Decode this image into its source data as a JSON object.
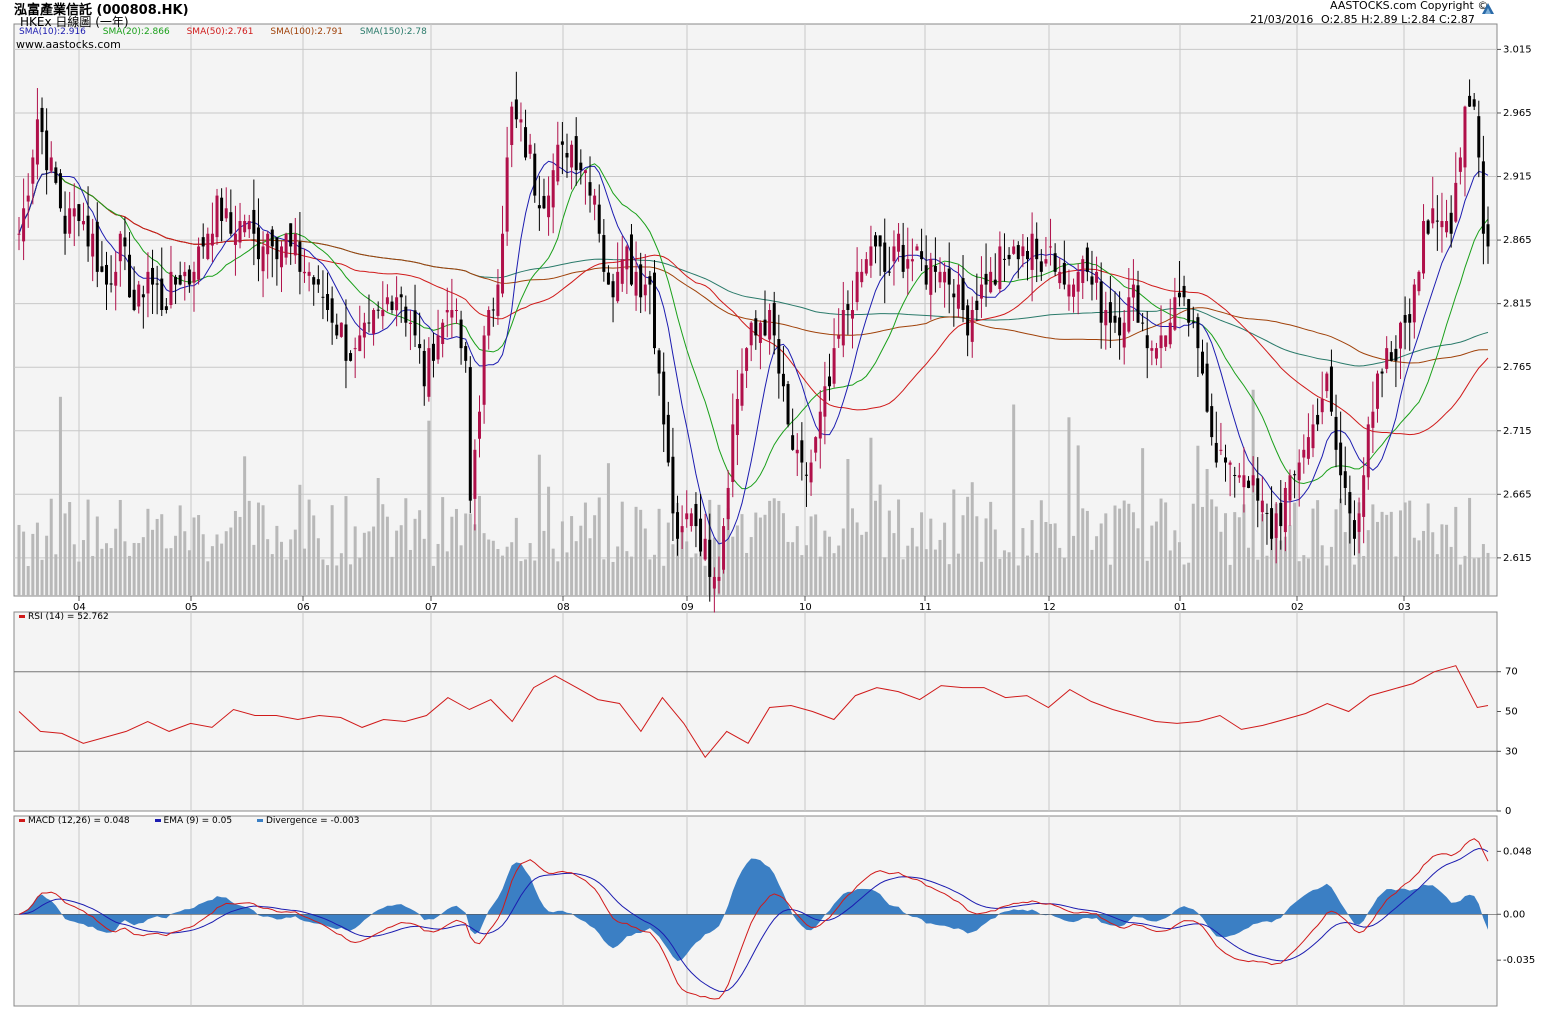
{
  "header": {
    "title": "泓富產業信託 (000808.HK)",
    "subtitle": "HKEx  日線圖 (一年)",
    "copyright": "AASTOCKS.com Copyright ©",
    "date": "21/03/2016",
    "ohlc": "O:2.85  H:2.89  L:2.84  C:2.87",
    "url": "www.aastocks.com",
    "logo_icon": "aastocks-logo-icon"
  },
  "sma_legend": [
    {
      "label": "SMA(10):2.916",
      "color": "#1c1cb0"
    },
    {
      "label": "SMA(20):2.866",
      "color": "#1aa01a"
    },
    {
      "label": "SMA(50):2.761",
      "color": "#d01a1a"
    },
    {
      "label": "SMA(100):2.791",
      "color": "#a0420a"
    },
    {
      "label": "SMA(150):2.78",
      "color": "#2a7a6a"
    }
  ],
  "rsi_legend": {
    "label": "RSI (14)  = 52.762",
    "color": "#d01a1a"
  },
  "macd_legend": [
    {
      "label": "MACD (12,26) = 0.048",
      "color": "#d01a1a"
    },
    {
      "label": "EMA (9) = 0.05",
      "color": "#1c1cb0"
    },
    {
      "label": "Divergence = -0.003",
      "color": "#3b7fc4"
    }
  ],
  "chart_data": [
    {
      "type": "candlestick",
      "x_tick_labels": [
        "04",
        "05",
        "06",
        "07",
        "08",
        "09",
        "10",
        "11",
        "12",
        "01",
        "02",
        "03"
      ],
      "y_tick_labels": [
        "3.015",
        "2.965",
        "2.915",
        "2.865",
        "2.815",
        "2.765",
        "2.715",
        "2.665",
        "2.615"
      ],
      "ylim": [
        2.585,
        3.035
      ],
      "last_bar": {
        "date": "21/03/2016",
        "open": 2.85,
        "high": 2.89,
        "low": 2.84,
        "close": 2.87
      },
      "close_path": [
        [
          0,
          2.87
        ],
        [
          4,
          2.96
        ],
        [
          7,
          2.92
        ],
        [
          10,
          2.88
        ],
        [
          13,
          2.89
        ],
        [
          16,
          2.86
        ],
        [
          19,
          2.83
        ],
        [
          22,
          2.86
        ],
        [
          25,
          2.81
        ],
        [
          28,
          2.84
        ],
        [
          31,
          2.82
        ],
        [
          34,
          2.83
        ],
        [
          37,
          2.84
        ],
        [
          40,
          2.86
        ],
        [
          43,
          2.89
        ],
        [
          46,
          2.87
        ],
        [
          49,
          2.88
        ],
        [
          52,
          2.86
        ],
        [
          55,
          2.87
        ],
        [
          58,
          2.86
        ],
        [
          61,
          2.85
        ],
        [
          64,
          2.83
        ],
        [
          67,
          2.81
        ],
        [
          70,
          2.79
        ],
        [
          73,
          2.77
        ],
        [
          76,
          2.79
        ],
        [
          79,
          2.81
        ],
        [
          82,
          2.83
        ],
        [
          85,
          2.8
        ],
        [
          88,
          2.76
        ],
        [
          91,
          2.79
        ],
        [
          94,
          2.82
        ],
        [
          97,
          2.76
        ],
        [
          98,
          2.66
        ],
        [
          101,
          2.78
        ],
        [
          104,
          2.84
        ],
        [
          107,
          2.96
        ],
        [
          110,
          2.94
        ],
        [
          113,
          2.9
        ],
        [
          116,
          2.92
        ],
        [
          119,
          2.94
        ],
        [
          122,
          2.93
        ],
        [
          125,
          2.9
        ],
        [
          128,
          2.82
        ],
        [
          131,
          2.86
        ],
        [
          134,
          2.84
        ],
        [
          137,
          2.83
        ],
        [
          140,
          2.72
        ],
        [
          143,
          2.62
        ],
        [
          146,
          2.66
        ],
        [
          149,
          2.62
        ],
        [
          152,
          2.61
        ],
        [
          155,
          2.72
        ],
        [
          158,
          2.78
        ],
        [
          161,
          2.8
        ],
        [
          164,
          2.79
        ],
        [
          167,
          2.71
        ],
        [
          170,
          2.68
        ],
        [
          173,
          2.7
        ],
        [
          176,
          2.75
        ],
        [
          179,
          2.8
        ],
        [
          182,
          2.83
        ],
        [
          185,
          2.86
        ],
        [
          188,
          2.84
        ],
        [
          191,
          2.86
        ],
        [
          194,
          2.85
        ],
        [
          197,
          2.84
        ],
        [
          200,
          2.85
        ],
        [
          203,
          2.83
        ],
        [
          206,
          2.8
        ],
        [
          209,
          2.83
        ],
        [
          212,
          2.84
        ],
        [
          215,
          2.85
        ],
        [
          218,
          2.86
        ],
        [
          221,
          2.85
        ],
        [
          224,
          2.86
        ],
        [
          227,
          2.83
        ],
        [
          230,
          2.85
        ],
        [
          233,
          2.83
        ],
        [
          236,
          2.81
        ],
        [
          239,
          2.8
        ],
        [
          242,
          2.82
        ],
        [
          245,
          2.79
        ],
        [
          248,
          2.78
        ],
        [
          251,
          2.82
        ],
        [
          254,
          2.8
        ],
        [
          257,
          2.76
        ],
        [
          260,
          2.7
        ],
        [
          263,
          2.68
        ],
        [
          266,
          2.69
        ],
        [
          269,
          2.66
        ],
        [
          272,
          2.64
        ],
        [
          275,
          2.66
        ],
        [
          278,
          2.69
        ],
        [
          281,
          2.72
        ],
        [
          284,
          2.75
        ],
        [
          287,
          2.68
        ],
        [
          290,
          2.64
        ],
        [
          293,
          2.71
        ],
        [
          296,
          2.76
        ],
        [
          299,
          2.78
        ],
        [
          302,
          2.81
        ],
        [
          305,
          2.88
        ],
        [
          308,
          2.87
        ],
        [
          311,
          2.88
        ],
        [
          314,
          2.97
        ],
        [
          316,
          2.98
        ],
        [
          318,
          2.87
        ]
      ],
      "volume_note": "volume bars shown in gray behind price"
    },
    {
      "type": "line",
      "name": "RSI (14)",
      "y_tick_labels": [
        "70",
        "50",
        "30",
        "0"
      ],
      "ylim": [
        0,
        100
      ],
      "last_value": 52.762,
      "rsi_path": [
        [
          0,
          50
        ],
        [
          6,
          40
        ],
        [
          12,
          39
        ],
        [
          18,
          34
        ],
        [
          24,
          37
        ],
        [
          30,
          40
        ],
        [
          36,
          45
        ],
        [
          42,
          40
        ],
        [
          48,
          44
        ],
        [
          54,
          42
        ],
        [
          60,
          51
        ],
        [
          66,
          48
        ],
        [
          72,
          48
        ],
        [
          78,
          46
        ],
        [
          84,
          48
        ],
        [
          90,
          47
        ],
        [
          96,
          42
        ],
        [
          102,
          46
        ],
        [
          108,
          45
        ],
        [
          114,
          48
        ],
        [
          120,
          57
        ],
        [
          126,
          51
        ],
        [
          132,
          56
        ],
        [
          138,
          45
        ],
        [
          144,
          62
        ],
        [
          150,
          68
        ],
        [
          156,
          62
        ],
        [
          162,
          56
        ],
        [
          168,
          54
        ],
        [
          174,
          40
        ],
        [
          180,
          57
        ],
        [
          186,
          44
        ],
        [
          192,
          27
        ],
        [
          198,
          40
        ],
        [
          204,
          34
        ],
        [
          210,
          52
        ],
        [
          216,
          53
        ],
        [
          222,
          50
        ],
        [
          228,
          46
        ],
        [
          234,
          58
        ],
        [
          240,
          62
        ],
        [
          246,
          60
        ],
        [
          252,
          56
        ],
        [
          258,
          63
        ],
        [
          264,
          62
        ],
        [
          270,
          62
        ],
        [
          276,
          57
        ],
        [
          282,
          58
        ],
        [
          288,
          52
        ],
        [
          294,
          61
        ],
        [
          300,
          55
        ],
        [
          306,
          51
        ],
        [
          312,
          48
        ],
        [
          318,
          45
        ],
        [
          324,
          44
        ],
        [
          330,
          45
        ],
        [
          336,
          48
        ],
        [
          342,
          41
        ],
        [
          348,
          43
        ],
        [
          354,
          46
        ],
        [
          360,
          49
        ],
        [
          366,
          54
        ],
        [
          372,
          50
        ],
        [
          378,
          58
        ],
        [
          384,
          61
        ],
        [
          390,
          64
        ],
        [
          396,
          70
        ],
        [
          402,
          73
        ],
        [
          408,
          52
        ],
        [
          411,
          53
        ]
      ]
    },
    {
      "type": "line",
      "name": "MACD (12,26)",
      "y_tick_labels": [
        "0.048",
        "0.00",
        "-0.035"
      ],
      "ylim": [
        -0.07,
        0.075
      ],
      "last_values": {
        "macd": 0.048,
        "ema9": 0.05,
        "divergence": -0.003
      }
    }
  ]
}
